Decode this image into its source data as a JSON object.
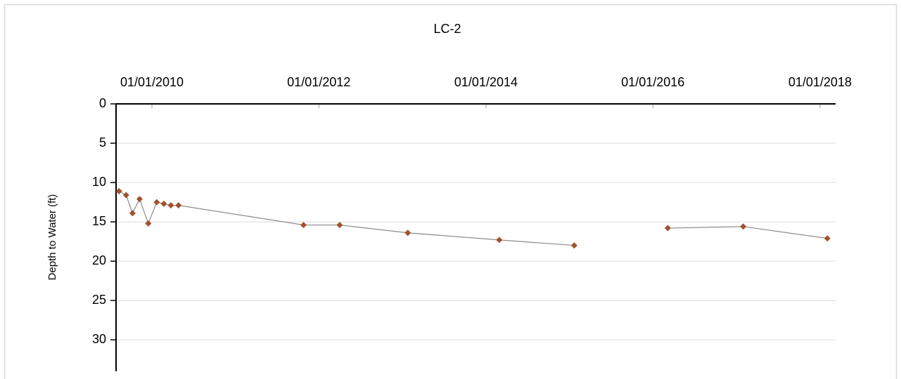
{
  "chart_data": {
    "type": "line",
    "title": "LC-2",
    "y_label": "Depth to Water (ft)",
    "y_inverted": true,
    "x_axis_position": "top",
    "grid": true,
    "xlim": [
      "2009-07-28",
      "2018-03-10"
    ],
    "xticks": [
      {
        "value": "2010-01-01",
        "label": "01/01/2010"
      },
      {
        "value": "2012-01-01",
        "label": "01/01/2012"
      },
      {
        "value": "2014-01-01",
        "label": "01/01/2014"
      },
      {
        "value": "2016-01-01",
        "label": "01/01/2016"
      },
      {
        "value": "2018-01-01",
        "label": "01/01/2018"
      }
    ],
    "ylim": [
      0,
      34
    ],
    "yticks": [
      0,
      5,
      10,
      15,
      20,
      25,
      30
    ],
    "x": [
      "2009-08-10",
      "2009-09-10",
      "2009-10-08",
      "2009-11-08",
      "2009-12-16",
      "2010-01-22",
      "2010-02-22",
      "2010-03-25",
      "2010-04-27",
      "2011-10-26",
      "2012-04-01",
      "2013-01-24",
      "2014-02-28",
      "2015-01-22",
      null,
      "2016-03-06",
      "2017-01-30",
      "2018-02-02"
    ],
    "series": [
      {
        "line_color": "#8a8a8a",
        "color": "#a0522d",
        "values": [
          11.1,
          11.6,
          13.9,
          12.1,
          15.2,
          12.5,
          12.7,
          12.9,
          12.9,
          15.4,
          15.4,
          16.4,
          17.3,
          18.0,
          null,
          15.8,
          15.6,
          17.1
        ]
      }
    ]
  }
}
